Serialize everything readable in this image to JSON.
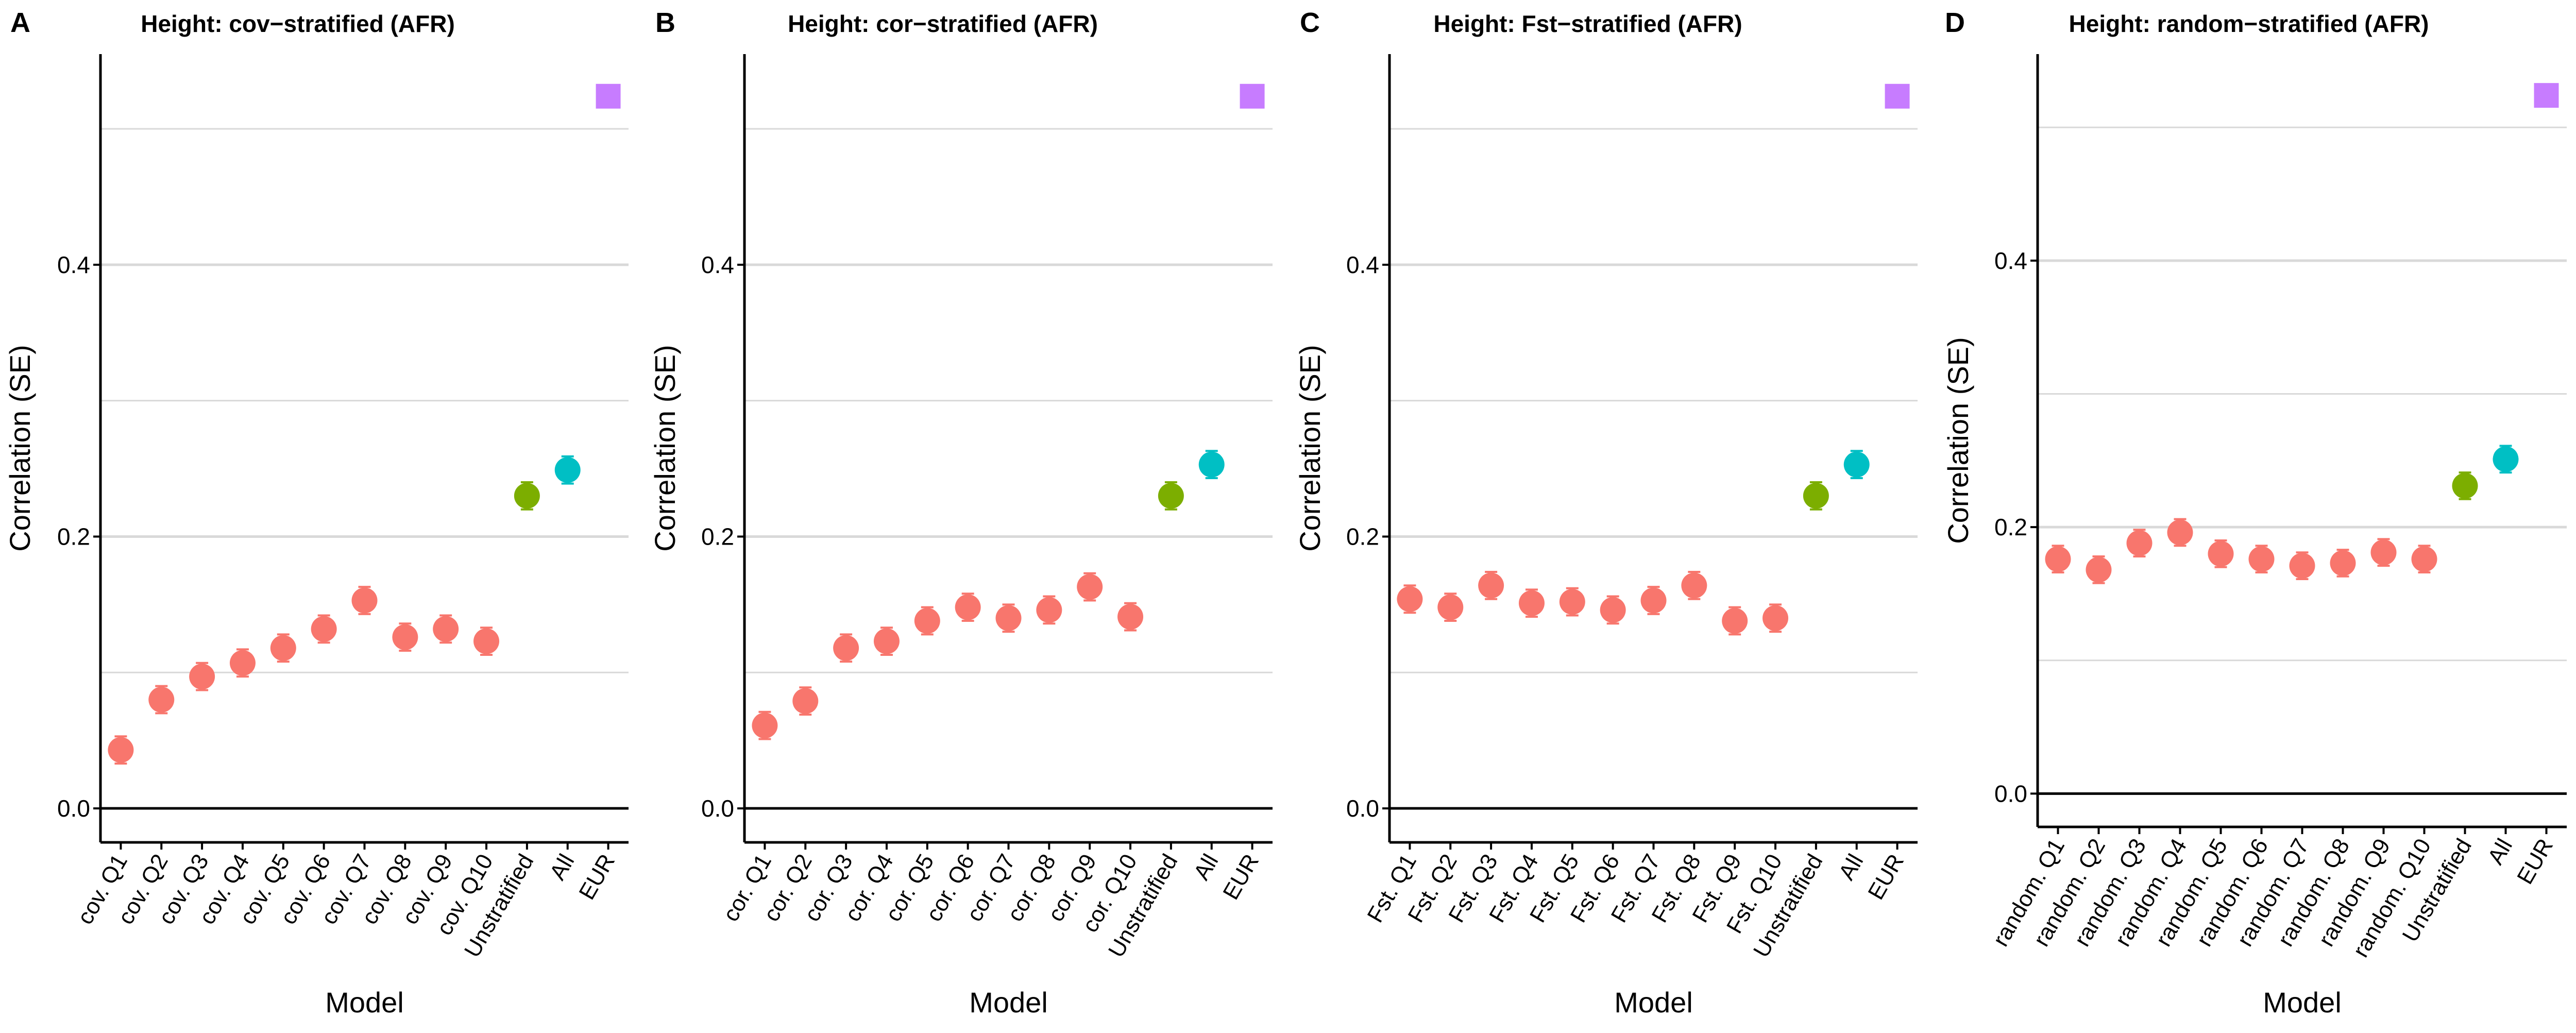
{
  "figure": {
    "x_axis_label": "Model",
    "y_axis_label": "Correlation (SE)"
  },
  "colors": {
    "quantile": "#F8766D",
    "unstratified": "#7CAE00",
    "all": "#00BFC4",
    "eur": "#C77CFF",
    "gridline": "#D9D9D9",
    "axis": "#000000"
  },
  "chart_data": [
    {
      "panel_letter": "A",
      "title": "Height: cov−stratified (AFR)",
      "type": "scatter",
      "categories": [
        "cov. Q1",
        "cov. Q2",
        "cov. Q3",
        "cov. Q4",
        "cov. Q5",
        "cov. Q6",
        "cov. Q7",
        "cov. Q8",
        "cov. Q9",
        "cov. Q10",
        "Unstratified",
        "All",
        "EUR"
      ],
      "values": [
        0.043,
        0.08,
        0.097,
        0.107,
        0.118,
        0.132,
        0.153,
        0.126,
        0.132,
        0.123,
        0.23,
        0.249,
        0.524
      ],
      "se": [
        0.01,
        0.01,
        0.01,
        0.01,
        0.01,
        0.01,
        0.01,
        0.01,
        0.01,
        0.01,
        0.01,
        0.01,
        0.0
      ],
      "groups": [
        "quantile",
        "quantile",
        "quantile",
        "quantile",
        "quantile",
        "quantile",
        "quantile",
        "quantile",
        "quantile",
        "quantile",
        "unstratified",
        "all",
        "eur"
      ],
      "ylim": [
        -0.025,
        0.555
      ],
      "yticks": [
        0.0,
        0.2,
        0.4
      ],
      "ytick_labels": [
        "0.0",
        "0.2",
        "0.4"
      ],
      "minor_gridlines": [
        0.1,
        0.3,
        0.5
      ],
      "xlabel": "Model",
      "ylabel": "Correlation (SE)"
    },
    {
      "panel_letter": "B",
      "title": "Height: cor−stratified (AFR)",
      "type": "scatter",
      "categories": [
        "cor. Q1",
        "cor. Q2",
        "cor. Q3",
        "cor. Q4",
        "cor. Q5",
        "cor. Q6",
        "cor. Q7",
        "cor. Q8",
        "cor. Q9",
        "cor. Q10",
        "Unstratified",
        "All",
        "EUR"
      ],
      "values": [
        0.061,
        0.079,
        0.118,
        0.123,
        0.138,
        0.148,
        0.14,
        0.146,
        0.163,
        0.141,
        0.23,
        0.253,
        0.524
      ],
      "se": [
        0.01,
        0.01,
        0.01,
        0.01,
        0.01,
        0.01,
        0.01,
        0.01,
        0.01,
        0.01,
        0.01,
        0.01,
        0.0
      ],
      "groups": [
        "quantile",
        "quantile",
        "quantile",
        "quantile",
        "quantile",
        "quantile",
        "quantile",
        "quantile",
        "quantile",
        "quantile",
        "unstratified",
        "all",
        "eur"
      ],
      "ylim": [
        -0.025,
        0.555
      ],
      "yticks": [
        0.0,
        0.2,
        0.4
      ],
      "ytick_labels": [
        "0.0",
        "0.2",
        "0.4"
      ],
      "minor_gridlines": [
        0.1,
        0.3,
        0.5
      ],
      "xlabel": "Model",
      "ylabel": "Correlation (SE)"
    },
    {
      "panel_letter": "C",
      "title": "Height: Fst−stratified (AFR)",
      "type": "scatter",
      "categories": [
        "Fst. Q1",
        "Fst. Q2",
        "Fst. Q3",
        "Fst. Q4",
        "Fst. Q5",
        "Fst. Q6",
        "Fst. Q7",
        "Fst. Q8",
        "Fst. Q9",
        "Fst. Q10",
        "Unstratified",
        "All",
        "EUR"
      ],
      "values": [
        0.154,
        0.148,
        0.164,
        0.151,
        0.152,
        0.146,
        0.153,
        0.164,
        0.138,
        0.14,
        0.23,
        0.253,
        0.524
      ],
      "se": [
        0.01,
        0.01,
        0.01,
        0.01,
        0.01,
        0.01,
        0.01,
        0.01,
        0.01,
        0.01,
        0.01,
        0.01,
        0.0
      ],
      "groups": [
        "quantile",
        "quantile",
        "quantile",
        "quantile",
        "quantile",
        "quantile",
        "quantile",
        "quantile",
        "quantile",
        "quantile",
        "unstratified",
        "all",
        "eur"
      ],
      "ylim": [
        -0.025,
        0.555
      ],
      "yticks": [
        0.0,
        0.2,
        0.4
      ],
      "ytick_labels": [
        "0.0",
        "0.2",
        "0.4"
      ],
      "minor_gridlines": [
        0.1,
        0.3,
        0.5
      ],
      "xlabel": "Model",
      "ylabel": "Correlation (SE)"
    },
    {
      "panel_letter": "D",
      "title": "Height: random−stratified (AFR)",
      "type": "scatter",
      "categories": [
        "random. Q1",
        "random. Q2",
        "random. Q3",
        "random. Q4",
        "random. Q5",
        "random. Q6",
        "random. Q7",
        "random. Q8",
        "random. Q9",
        "random. Q10",
        "Unstratified",
        "All",
        "EUR"
      ],
      "values": [
        0.176,
        0.168,
        0.188,
        0.196,
        0.18,
        0.176,
        0.171,
        0.173,
        0.181,
        0.176,
        0.231,
        0.251,
        0.524
      ],
      "se": [
        0.01,
        0.01,
        0.01,
        0.01,
        0.01,
        0.01,
        0.01,
        0.01,
        0.01,
        0.01,
        0.01,
        0.01,
        0.0
      ],
      "groups": [
        "quantile",
        "quantile",
        "quantile",
        "quantile",
        "quantile",
        "quantile",
        "quantile",
        "quantile",
        "quantile",
        "quantile",
        "unstratified",
        "all",
        "eur"
      ],
      "ylim": [
        -0.025,
        0.555
      ],
      "yticks": [
        0.0,
        0.2,
        0.4
      ],
      "ytick_labels": [
        "0.0",
        "0.2",
        "0.4"
      ],
      "minor_gridlines": [
        0.1,
        0.3,
        0.5
      ],
      "xlabel": "Model",
      "ylabel": "Correlation (SE)"
    }
  ]
}
